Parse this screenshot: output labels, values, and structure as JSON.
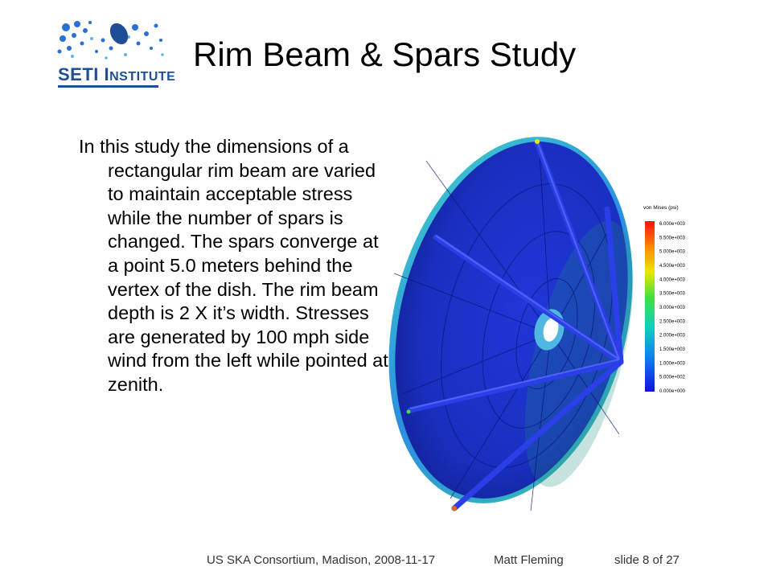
{
  "logo": {
    "text_main": "SETI I",
    "text_small": "NSTITUTE"
  },
  "slide": {
    "title": "Rim Beam & Spars Study",
    "body": "In this study the dimensions of a rectangular rim beam are varied to maintain acceptable stress while the number of spars is changed.  The spars converge at a point 5.0 meters behind the vertex of the dish.  The rim beam depth is 2 X it’s width.  Stresses are generated by 100 mph side wind from the left while pointed at zenith."
  },
  "legend": {
    "title": "von Mises (psi)",
    "labels": [
      "6.000e+003",
      "5.500e+003",
      "5.000e+003",
      "4.500e+003",
      "4.000e+003",
      "3.500e+003",
      "3.000e+003",
      "2.500e+003",
      "2.000e+003",
      "1.500e+003",
      "1.000e+003",
      "5.000e+002",
      "0.000e+000"
    ]
  },
  "footer": {
    "event": "US SKA Consortium, Madison, 2008-11-17",
    "author": "Matt Fleming",
    "slide_number": "slide 8 of 27"
  },
  "colors": {
    "logo_blue": "#1f4e96",
    "dish_blue": "#1a2fc8",
    "spar_blue": "#2a3fe0"
  }
}
